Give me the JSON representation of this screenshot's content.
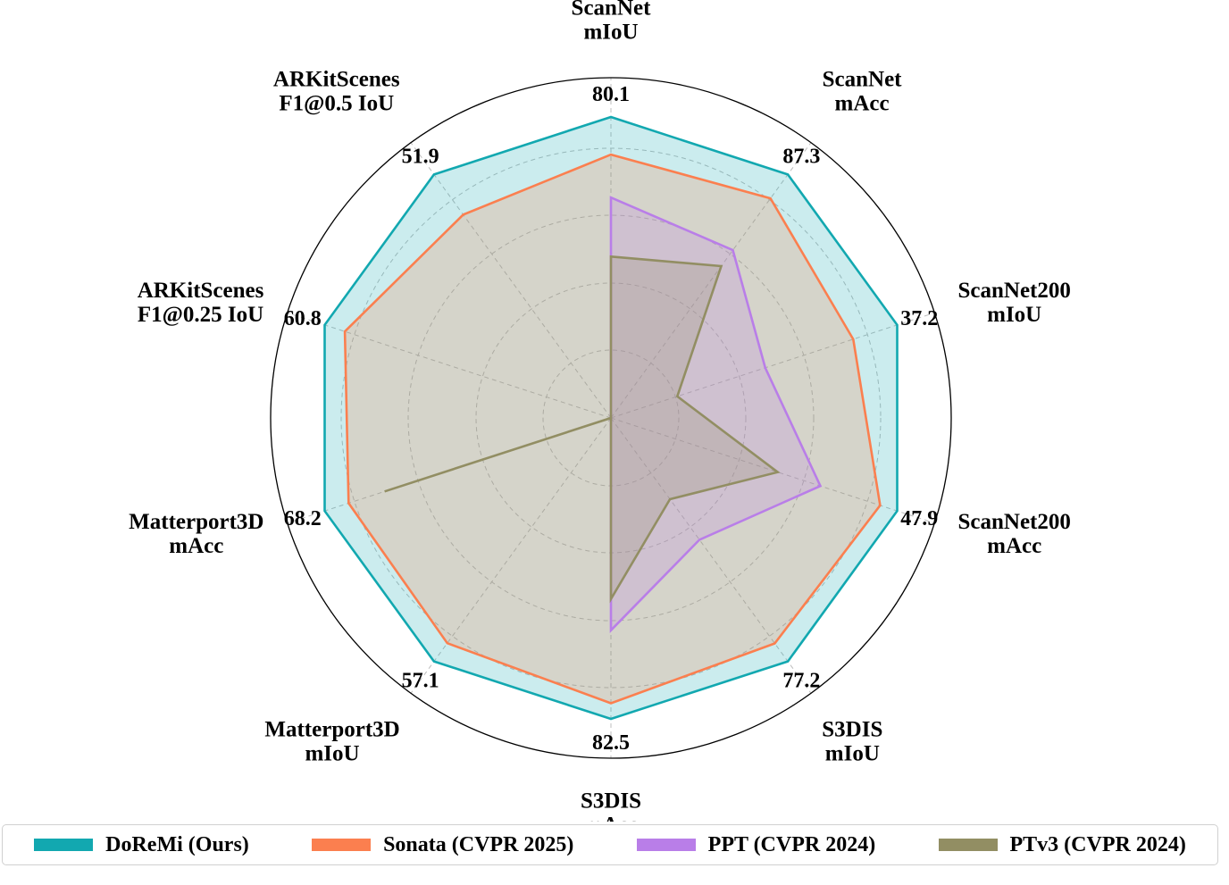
{
  "chart_data": {
    "type": "radar",
    "axes": [
      {
        "lines": [
          "ScanNet",
          "mIoU"
        ],
        "max_label": "80.1",
        "max": 80.1
      },
      {
        "lines": [
          "ScanNet",
          "mAcc"
        ],
        "max_label": "87.3",
        "max": 87.3
      },
      {
        "lines": [
          "ScanNet200",
          "mIoU"
        ],
        "max_label": "37.2",
        "max": 37.2
      },
      {
        "lines": [
          "ScanNet200",
          "mAcc"
        ],
        "max_label": "47.9",
        "max": 47.9
      },
      {
        "lines": [
          "S3DIS",
          "mIoU"
        ],
        "max_label": "77.2",
        "max": 77.2
      },
      {
        "lines": [
          "S3DIS",
          "mAcc"
        ],
        "max_label": "82.5",
        "max": 82.5
      },
      {
        "lines": [
          "Matterport3D",
          "mIoU"
        ],
        "max_label": "57.1",
        "max": 57.1
      },
      {
        "lines": [
          "Matterport3D",
          "mAcc"
        ],
        "max_label": "68.2",
        "max": 68.2
      },
      {
        "lines": [
          "ARKitScenes",
          "F1@0.25 IoU"
        ],
        "max_label": "60.8",
        "max": 60.8
      },
      {
        "lines": [
          "ARKitScenes",
          "F1@0.5 IoU"
        ],
        "max_label": "51.9",
        "max": 51.9
      }
    ],
    "series": [
      {
        "name": "DoReMi (Ours)",
        "color": "#12a8b0",
        "values": [
          80.1,
          87.3,
          37.2,
          47.9,
          77.2,
          82.5,
          57.1,
          68.2,
          60.8,
          51.9
        ]
      },
      {
        "name": "Sonata (CVPR 2025)",
        "color": "#fb7f4f",
        "values": [
          79.4,
          86.7,
          36.8,
          47.7,
          76.8,
          82.2,
          56.8,
          67.8,
          60.5,
          51.3
        ]
      },
      {
        "name": "PPT (CVPR 2024)",
        "color": "#b97ee8",
        "values": [
          78.6,
          85.4,
          36.0,
          47.0,
          74.5,
          80.8,
          null,
          null,
          null,
          null
        ]
      },
      {
        "name": "PTv3 (CVPR 2024)",
        "color": "#928e63",
        "values": [
          77.5,
          85.0,
          35.2,
          46.5,
          73.6,
          80.2,
          null,
          67.2,
          null,
          null
        ]
      }
    ],
    "grid": true,
    "legend_position": "bottom"
  }
}
